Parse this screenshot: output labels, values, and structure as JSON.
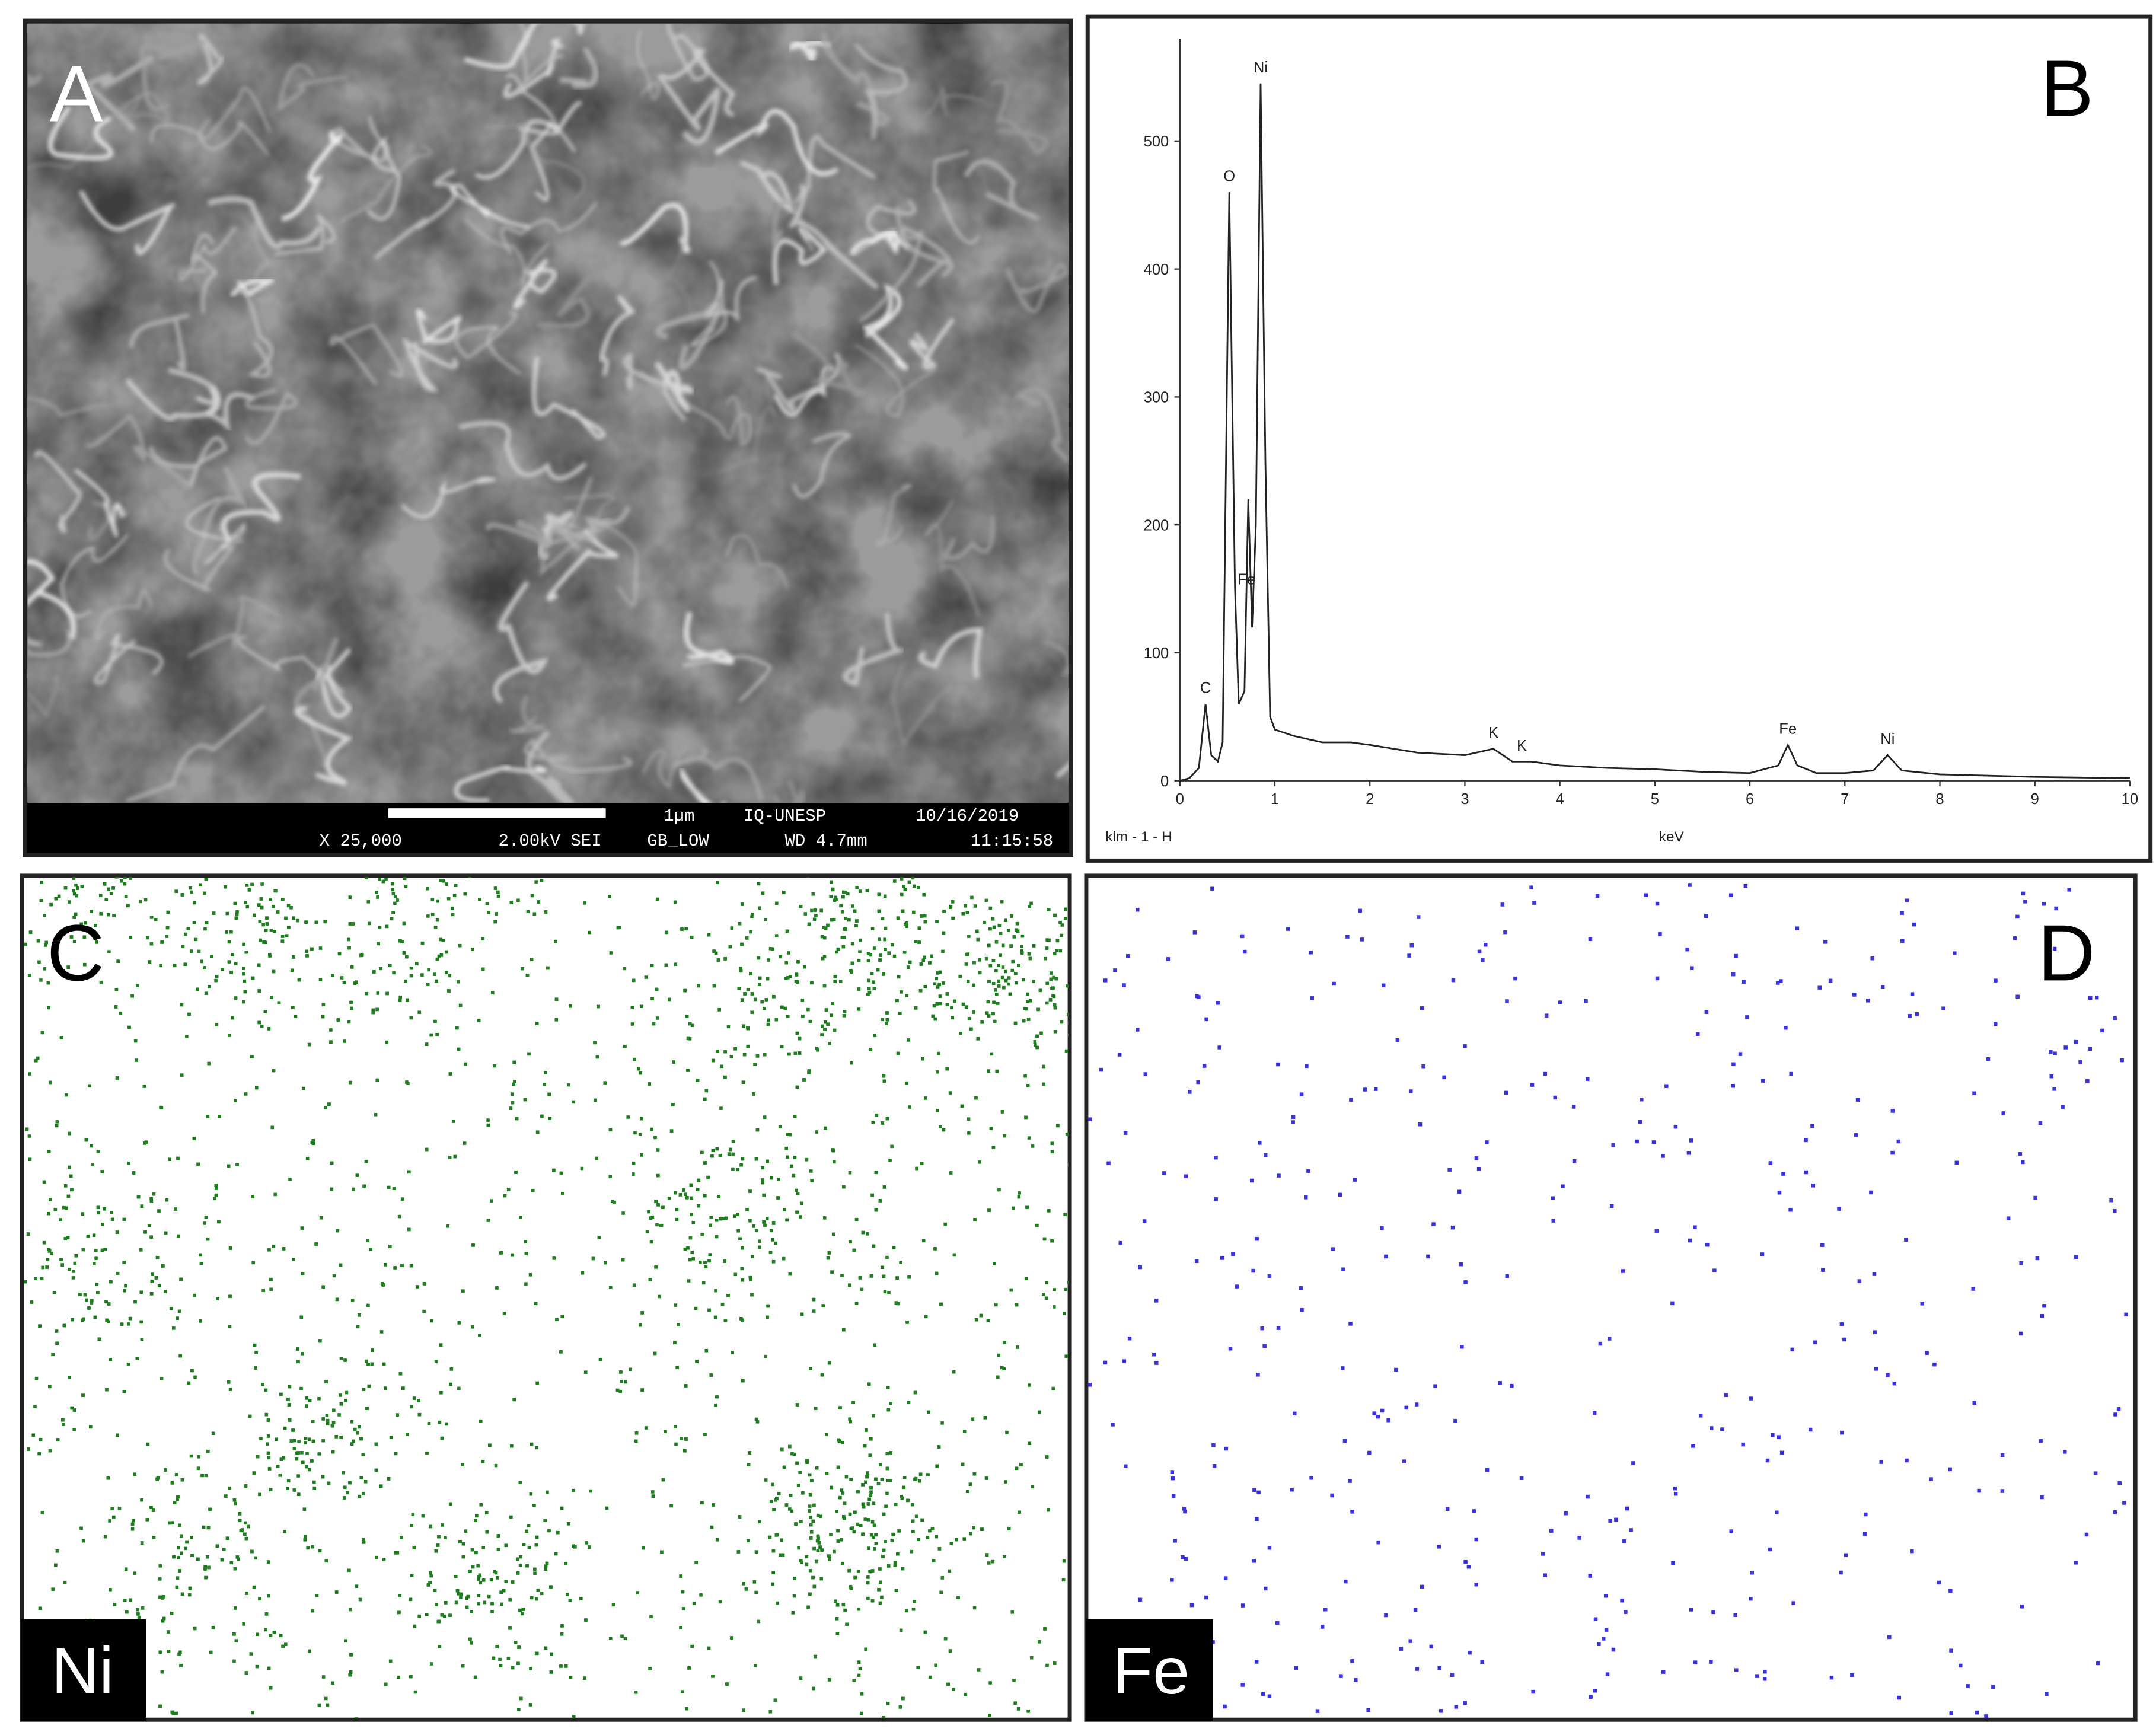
{
  "panels": {
    "a": {
      "letter": "A",
      "scale_bar": "1µm",
      "footer_top": [
        "IQ-UNESP",
        "10/16/2019"
      ],
      "footer_bottom": [
        "X 25,000",
        "2.00kV SEI",
        "GB_LOW",
        "WD 4.7mm",
        "11:15:58"
      ]
    },
    "b": {
      "letter": "B"
    },
    "c": {
      "letter": "C",
      "element": "Ni",
      "color": "#1e7d1e"
    },
    "d": {
      "letter": "D",
      "element": "Fe",
      "color": "#3a32e0"
    }
  },
  "chart_data": {
    "type": "line",
    "x_label": "keV",
    "corner_label": "klm - 1 - H",
    "color": "#222222",
    "x": [
      0,
      0.1,
      0.2,
      0.27,
      0.33,
      0.4,
      0.45,
      0.52,
      0.58,
      0.62,
      0.68,
      0.72,
      0.76,
      0.8,
      0.85,
      0.9,
      0.95,
      1.0,
      1.2,
      1.5,
      1.8,
      2.0,
      2.5,
      3.0,
      3.3,
      3.5,
      3.7,
      4.0,
      4.5,
      5.0,
      5.5,
      6.0,
      6.3,
      6.4,
      6.5,
      6.7,
      7.0,
      7.3,
      7.45,
      7.6,
      8.0,
      9.0,
      10.0
    ],
    "values": [
      0,
      2,
      10,
      60,
      20,
      15,
      30,
      460,
      150,
      60,
      70,
      220,
      120,
      200,
      545,
      250,
      50,
      40,
      35,
      30,
      30,
      28,
      22,
      20,
      25,
      15,
      15,
      12,
      10,
      9,
      7,
      6,
      12,
      28,
      12,
      6,
      6,
      8,
      20,
      8,
      5,
      3,
      2
    ],
    "peak_labels": [
      {
        "label": "C",
        "x": 0.27
      },
      {
        "label": "O",
        "x": 0.52
      },
      {
        "label": "Fe",
        "x": 0.7
      },
      {
        "label": "Ni",
        "x": 0.85
      },
      {
        "label": "K",
        "x": 3.3
      },
      {
        "label": "K",
        "x": 3.6
      },
      {
        "label": "Fe",
        "x": 6.4
      },
      {
        "label": "Ni",
        "x": 7.45
      }
    ],
    "xlim": [
      0,
      10
    ],
    "ylim": [
      0,
      580
    ],
    "xticks": [
      0,
      1,
      2,
      3,
      4,
      5,
      6,
      7,
      8,
      9,
      10
    ],
    "yticks": [
      0,
      100,
      200,
      300,
      400,
      500
    ]
  }
}
